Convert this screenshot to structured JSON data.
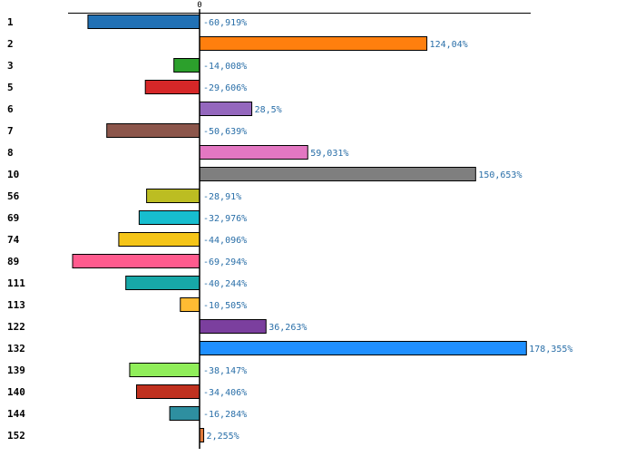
{
  "chart_data": {
    "type": "bar",
    "orientation": "horizontal",
    "title": "",
    "xlabel": "",
    "ylabel": "",
    "zero_tick_label": "0",
    "xlim": [
      -85,
      200
    ],
    "grid": false,
    "legend": "none",
    "categories": [
      "1",
      "2",
      "3",
      "5",
      "6",
      "7",
      "8",
      "10",
      "56",
      "69",
      "74",
      "89",
      "111",
      "113",
      "122",
      "132",
      "139",
      "140",
      "144",
      "152"
    ],
    "values": [
      -60.919,
      124.04,
      -14.008,
      -29.606,
      28.5,
      -50.639,
      59.031,
      150.653,
      -28.91,
      -32.976,
      -44.096,
      -69.294,
      -40.244,
      -10.505,
      36.263,
      178.355,
      -38.147,
      -34.406,
      -16.284,
      2.255
    ],
    "value_labels": [
      "-60,919%",
      "124,04%",
      "-14,008%",
      "-29,606%",
      "28,5%",
      "-50,639%",
      "59,031%",
      "150,653%",
      "-28,91%",
      "-32,976%",
      "-44,096%",
      "-69,294%",
      "-40,244%",
      "-10,505%",
      "36,263%",
      "178,355%",
      "-38,147%",
      "-34,406%",
      "-16,284%",
      "2,255%"
    ],
    "colors": [
      "#2171b5",
      "#ff7f0e",
      "#2ca02c",
      "#d62728",
      "#9467bd",
      "#8c564b",
      "#e377c2",
      "#7f7f7f",
      "#bcbd22",
      "#17becf",
      "#f5c518",
      "#ff5b8e",
      "#17a8a8",
      "#ffbb33",
      "#7b3f9e",
      "#1f8fff",
      "#90ee5a",
      "#c0311f",
      "#2e8fa0",
      "#e07a3a"
    ]
  }
}
